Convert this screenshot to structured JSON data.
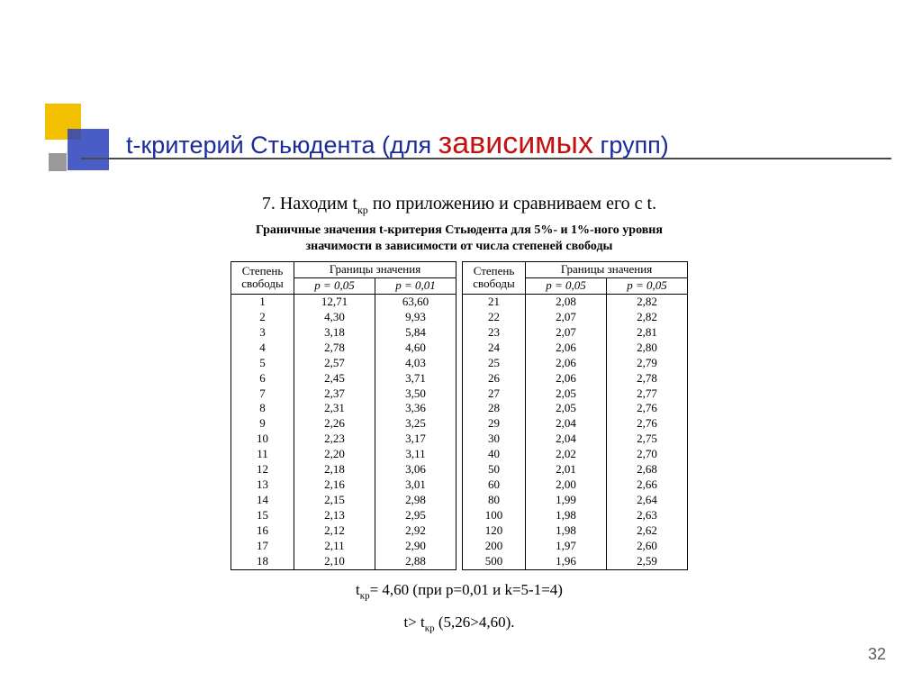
{
  "title": {
    "prefix": "t-критерий Стьюдента (для ",
    "emph": "зависимых",
    "suffix": " групп)"
  },
  "step": {
    "num": "7.",
    "text_before": " Находим t",
    "sub": "кр",
    "text_after": " по приложению и сравниваем его с t."
  },
  "caption_line1": "Граничные значения t-критерия Стьюдента для 5%- и 1%-ного уровня",
  "caption_line2": "значимости в зависимости от числа степеней свободы",
  "headers": {
    "dof": "Степень свободы",
    "bounds": "Границы значения",
    "p005": "p = 0,05",
    "p001": "p = 0,01",
    "p005b": "p = 0,05"
  },
  "left": {
    "rows": [
      {
        "df": "1",
        "a": "12,71",
        "b": "63,60"
      },
      {
        "df": "2",
        "a": "4,30",
        "b": "9,93"
      },
      {
        "df": "3",
        "a": "3,18",
        "b": "5,84"
      },
      {
        "df": "4",
        "a": "2,78",
        "b": "4,60"
      },
      {
        "df": "5",
        "a": "2,57",
        "b": "4,03"
      },
      {
        "df": "6",
        "a": "2,45",
        "b": "3,71"
      },
      {
        "df": "7",
        "a": "2,37",
        "b": "3,50"
      },
      {
        "df": "8",
        "a": "2,31",
        "b": "3,36"
      },
      {
        "df": "9",
        "a": "2,26",
        "b": "3,25"
      },
      {
        "df": "10",
        "a": "2,23",
        "b": "3,17"
      },
      {
        "df": "11",
        "a": "2,20",
        "b": "3,11"
      },
      {
        "df": "12",
        "a": "2,18",
        "b": "3,06"
      },
      {
        "df": "13",
        "a": "2,16",
        "b": "3,01"
      },
      {
        "df": "14",
        "a": "2,15",
        "b": "2,98"
      },
      {
        "df": "15",
        "a": "2,13",
        "b": "2,95"
      },
      {
        "df": "16",
        "a": "2,12",
        "b": "2,92"
      },
      {
        "df": "17",
        "a": "2,11",
        "b": "2,90"
      },
      {
        "df": "18",
        "a": "2,10",
        "b": "2,88"
      }
    ]
  },
  "right": {
    "rows": [
      {
        "df": "21",
        "a": "2,08",
        "b": "2,82"
      },
      {
        "df": "22",
        "a": "2,07",
        "b": "2,82"
      },
      {
        "df": "23",
        "a": "2,07",
        "b": "2,81"
      },
      {
        "df": "24",
        "a": "2,06",
        "b": "2,80"
      },
      {
        "df": "25",
        "a": "2,06",
        "b": "2,79"
      },
      {
        "df": "26",
        "a": "2,06",
        "b": "2,78"
      },
      {
        "df": "27",
        "a": "2,05",
        "b": "2,77"
      },
      {
        "df": "28",
        "a": "2,05",
        "b": "2,76"
      },
      {
        "df": "29",
        "a": "2,04",
        "b": "2,76"
      },
      {
        "df": "30",
        "a": "2,04",
        "b": "2,75"
      },
      {
        "df": "40",
        "a": "2,02",
        "b": "2,70"
      },
      {
        "df": "50",
        "a": "2,01",
        "b": "2,68"
      },
      {
        "df": "60",
        "a": "2,00",
        "b": "2,66"
      },
      {
        "df": "80",
        "a": "1,99",
        "b": "2,64"
      },
      {
        "df": "100",
        "a": "1,98",
        "b": "2,63"
      },
      {
        "df": "120",
        "a": "1,98",
        "b": "2,62"
      },
      {
        "df": "200",
        "a": "1,97",
        "b": "2,60"
      },
      {
        "df": "500",
        "a": "1,96",
        "b": "2,59"
      }
    ]
  },
  "result1": {
    "before": "t",
    "sub": "кр",
    "after": "= 4,60 (при p=0,01 и k=5-1=4)"
  },
  "result2": {
    "before": "t> t",
    "sub": "кр",
    "after": " (5,26>4,60)."
  },
  "pagenum": "32"
}
